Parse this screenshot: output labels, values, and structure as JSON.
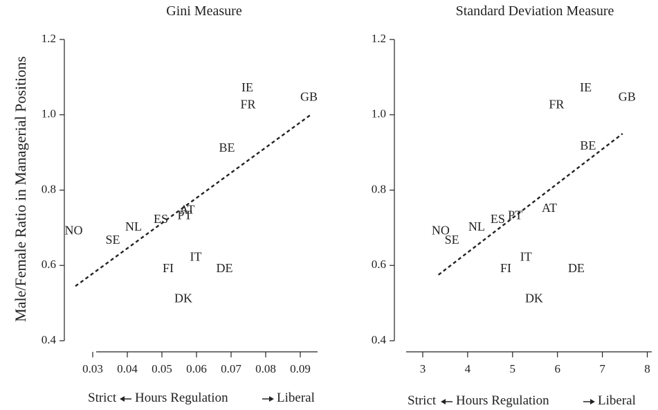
{
  "figure": {
    "ylabel": "Male/Female Ratio in Managerial Positions"
  },
  "chart_data": [
    {
      "type": "scatter",
      "title": "Gini Measure",
      "xlabel_left": "Strict",
      "xlabel_mid": "Hours Regulation",
      "xlabel_right": "Liberal",
      "ylabel": "Male/Female Ratio in Managerial Positions",
      "xlim": [
        0.022,
        0.095
      ],
      "ylim": [
        0.4,
        1.2
      ],
      "xticks": [
        0.03,
        0.04,
        0.05,
        0.06,
        0.07,
        0.08,
        0.09
      ],
      "xtick_labels": [
        "0.03",
        "0.04",
        "0.05",
        "0.06",
        "0.07",
        "0.08",
        "0.09"
      ],
      "yticks": [
        0.4,
        0.6,
        0.8,
        1.0,
        1.2
      ],
      "ytick_labels": [
        "0.4",
        "0.6",
        "0.8",
        "1.0",
        "1.2"
      ],
      "points": [
        {
          "label": "NO",
          "x": 0.0245,
          "y": 0.69
        },
        {
          "label": "SE",
          "x": 0.0358,
          "y": 0.665
        },
        {
          "label": "NL",
          "x": 0.0418,
          "y": 0.7
        },
        {
          "label": "ES",
          "x": 0.0497,
          "y": 0.72
        },
        {
          "label": "PT",
          "x": 0.0566,
          "y": 0.73
        },
        {
          "label": "AT",
          "x": 0.0573,
          "y": 0.745
        },
        {
          "label": "FI",
          "x": 0.0518,
          "y": 0.59
        },
        {
          "label": "IT",
          "x": 0.0598,
          "y": 0.62
        },
        {
          "label": "DE",
          "x": 0.0681,
          "y": 0.59
        },
        {
          "label": "DK",
          "x": 0.0562,
          "y": 0.51
        },
        {
          "label": "BE",
          "x": 0.0688,
          "y": 0.91
        },
        {
          "label": "IE",
          "x": 0.0747,
          "y": 1.07
        },
        {
          "label": "FR",
          "x": 0.0749,
          "y": 1.025
        },
        {
          "label": "GB",
          "x": 0.0925,
          "y": 1.045
        }
      ],
      "trendline": {
        "x": [
          0.025,
          0.093
        ],
        "y": [
          0.545,
          1.0
        ]
      }
    },
    {
      "type": "scatter",
      "title": "Standard Deviation Measure",
      "xlabel_left": "Strict",
      "xlabel_mid": "Hours Regulation",
      "xlabel_right": "Liberal",
      "ylabel": "Male/Female Ratio in Managerial Positions",
      "xlim": [
        2.6,
        8.1
      ],
      "ylim": [
        0.4,
        1.2
      ],
      "xticks": [
        3,
        4,
        5,
        6,
        7,
        8
      ],
      "xtick_labels": [
        "3",
        "4",
        "5",
        "6",
        "7",
        "8"
      ],
      "yticks": [
        0.4,
        0.6,
        0.8,
        1.0,
        1.2
      ],
      "ytick_labels": [
        "0.4",
        "0.6",
        "0.8",
        "1.0",
        "1.2"
      ],
      "points": [
        {
          "label": "NO",
          "x": 3.4,
          "y": 0.69
        },
        {
          "label": "SE",
          "x": 3.65,
          "y": 0.665
        },
        {
          "label": "NL",
          "x": 4.2,
          "y": 0.7
        },
        {
          "label": "ES",
          "x": 4.67,
          "y": 0.72
        },
        {
          "label": "PT",
          "x": 5.06,
          "y": 0.73
        },
        {
          "label": "AT",
          "x": 5.82,
          "y": 0.75
        },
        {
          "label": "FI",
          "x": 4.85,
          "y": 0.59
        },
        {
          "label": "IT",
          "x": 5.3,
          "y": 0.62
        },
        {
          "label": "DE",
          "x": 6.42,
          "y": 0.59
        },
        {
          "label": "DK",
          "x": 5.48,
          "y": 0.51
        },
        {
          "label": "BE",
          "x": 6.68,
          "y": 0.915
        },
        {
          "label": "IE",
          "x": 6.63,
          "y": 1.07
        },
        {
          "label": "FR",
          "x": 5.98,
          "y": 1.025
        },
        {
          "label": "GB",
          "x": 7.55,
          "y": 1.045
        }
      ],
      "trendline": {
        "x": [
          3.35,
          7.45
        ],
        "y": [
          0.575,
          0.95
        ]
      }
    }
  ]
}
